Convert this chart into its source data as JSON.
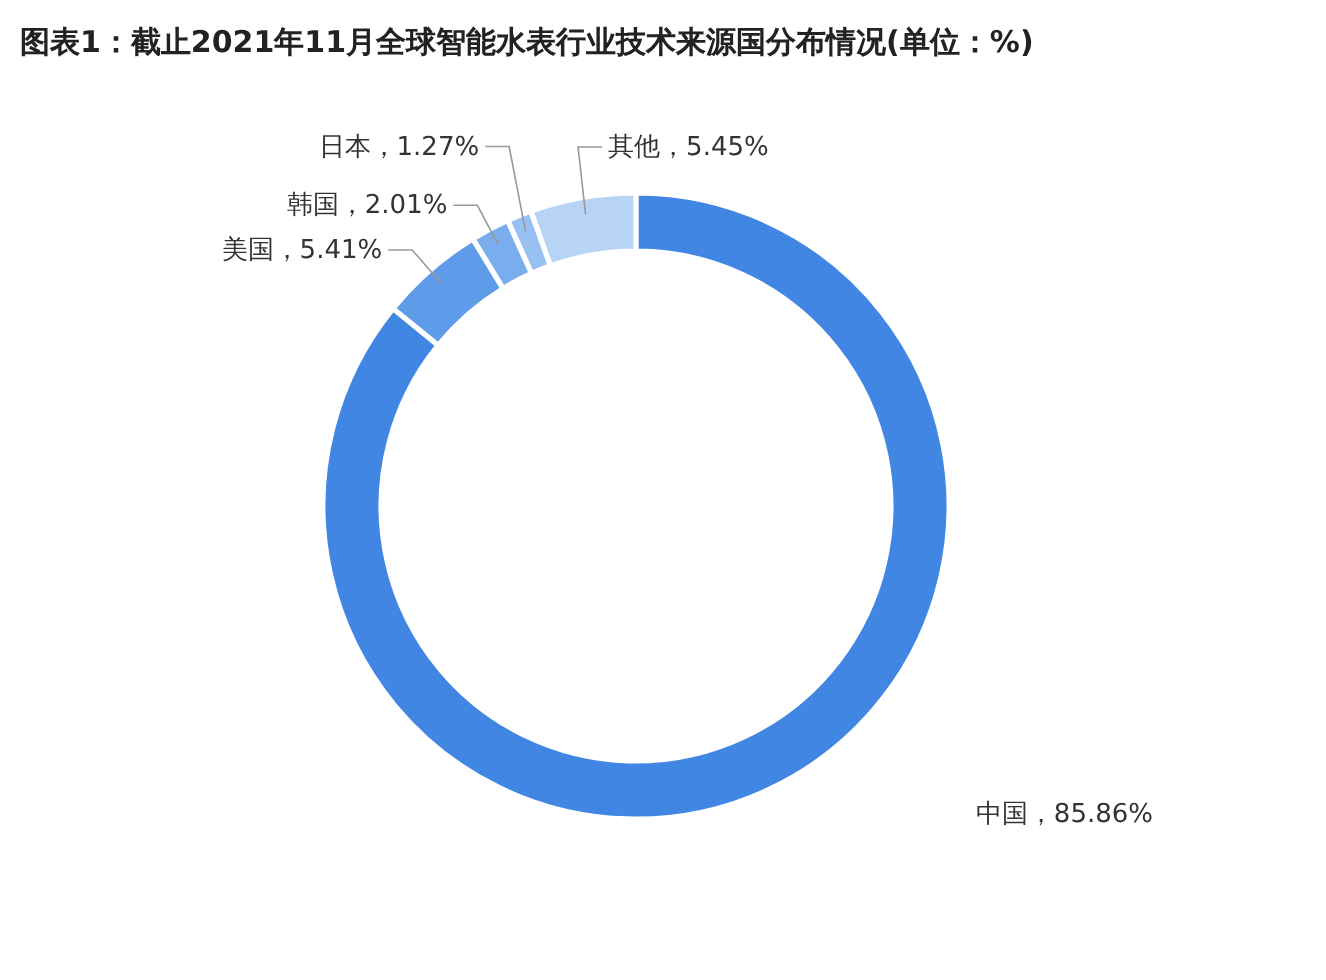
{
  "chart_data": {
    "type": "donut",
    "title": "图表1：截止2021年11月全球智能水表行业技术来源国分布情况(单位：%)",
    "categories": [
      "中国",
      "美国",
      "韩国",
      "日本",
      "其他"
    ],
    "values": [
      85.86,
      5.41,
      2.01,
      1.27,
      5.45
    ],
    "value_labels": [
      "85.86%",
      "5.41%",
      "2.01%",
      "1.27%",
      "5.45%"
    ],
    "colors": [
      "#4186e2",
      "#5e9be8",
      "#7aaded",
      "#98c0f2",
      "#b7d4f7"
    ],
    "legend": false
  }
}
